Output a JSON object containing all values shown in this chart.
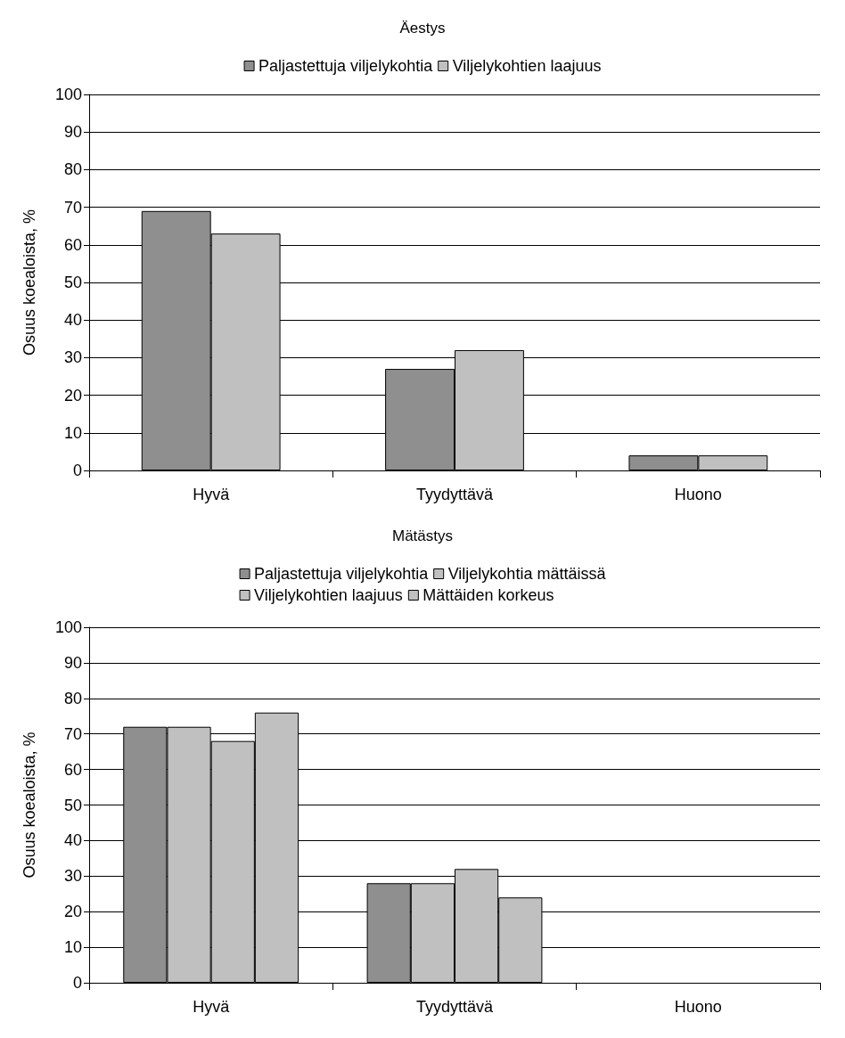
{
  "chart_data": [
    {
      "type": "bar",
      "title": "Äestys",
      "ylabel": "Osuus koealoista, %",
      "categories": [
        "Hyvä",
        "Tyydyttävä",
        "Huono"
      ],
      "series": [
        {
          "name": "Paljastettuja viljelykohtia",
          "color": "#8f8f8f",
          "values": [
            69,
            27,
            4
          ]
        },
        {
          "name": "Viljelykohtien laajuus",
          "color": "#c0c0c0",
          "values": [
            63,
            32,
            4
          ]
        }
      ],
      "ylim": [
        0,
        100
      ],
      "yticks": [
        0,
        10,
        20,
        30,
        40,
        50,
        60,
        70,
        80,
        90,
        100
      ],
      "grid": "y",
      "legend": "top"
    },
    {
      "type": "bar",
      "title": "Mätästys",
      "ylabel": "Osuus koealoista, %",
      "categories": [
        "Hyvä",
        "Tyydyttävä",
        "Huono"
      ],
      "series": [
        {
          "name": "Paljastettuja viljelykohtia",
          "color": "#8f8f8f",
          "values": [
            72,
            28,
            0
          ]
        },
        {
          "name": "Viljelykohtia mättäissä",
          "color": "#c0c0c0",
          "values": [
            72,
            28,
            0
          ]
        },
        {
          "name": "Viljelykohtien laajuus",
          "color": "#c0c0c0",
          "values": [
            68,
            32,
            0
          ]
        },
        {
          "name": "Mättäiden korkeus",
          "color": "#c0c0c0",
          "values": [
            76,
            24,
            0
          ]
        }
      ],
      "ylim": [
        0,
        100
      ],
      "yticks": [
        0,
        10,
        20,
        30,
        40,
        50,
        60,
        70,
        80,
        90,
        100
      ],
      "grid": "y",
      "legend": "top"
    }
  ]
}
